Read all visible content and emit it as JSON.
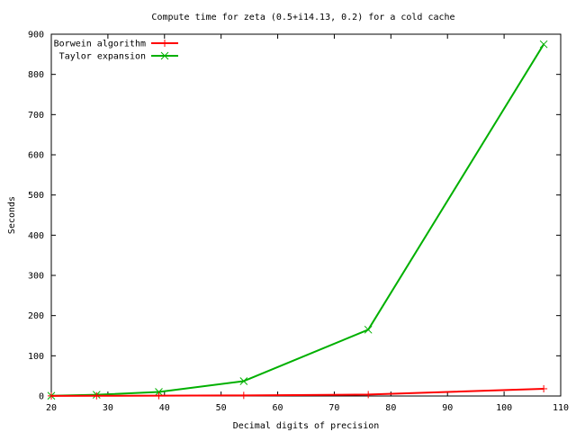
{
  "chart_data": {
    "type": "line",
    "title": "Compute time for zeta (0.5+i14.13, 0.2) for a cold cache",
    "xlabel": "Decimal digits of precision",
    "ylabel": "Seconds",
    "xlim": [
      20,
      110
    ],
    "ylim": [
      0,
      900
    ],
    "x_ticks": [
      20,
      30,
      40,
      50,
      60,
      70,
      80,
      90,
      100,
      110
    ],
    "y_ticks": [
      0,
      100,
      200,
      300,
      400,
      500,
      600,
      700,
      800,
      900
    ],
    "grid": false,
    "legend_position": "top-left",
    "series": [
      {
        "name": "Borwein algorithm",
        "color": "#ff0000",
        "marker": "plus",
        "points": [
          [
            20,
            0.3
          ],
          [
            28,
            0.5
          ],
          [
            39,
            0.8
          ],
          [
            54,
            1.5
          ],
          [
            76,
            3.5
          ],
          [
            107,
            18
          ]
        ]
      },
      {
        "name": "Taylor expansion",
        "color": "#00b000",
        "marker": "cross",
        "points": [
          [
            20,
            0.5
          ],
          [
            28,
            3
          ],
          [
            39,
            10
          ],
          [
            54,
            37
          ],
          [
            76,
            165
          ],
          [
            107,
            875
          ]
        ]
      }
    ]
  }
}
